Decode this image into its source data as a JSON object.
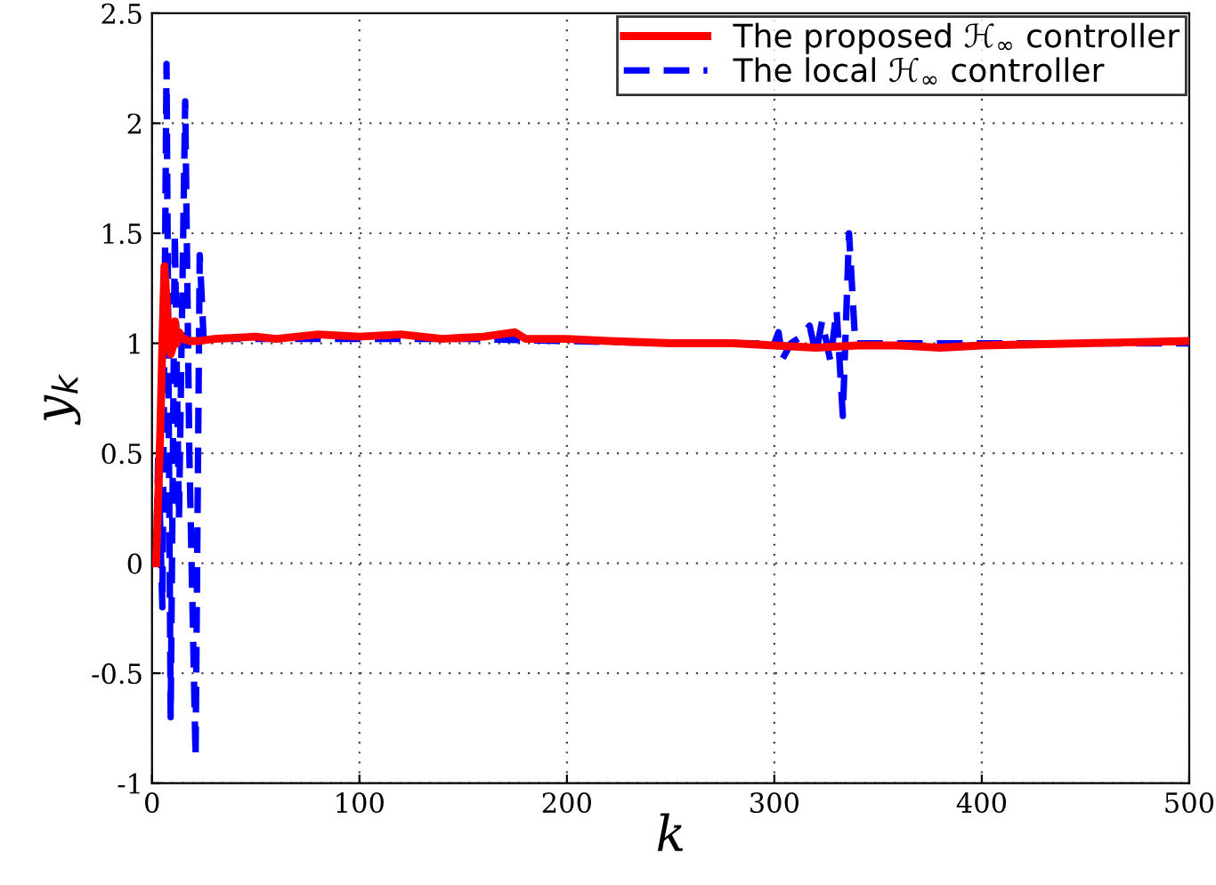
{
  "chart_data": {
    "type": "line",
    "xlabel": "k",
    "ylabel": "y$_{k}$",
    "xlim": [
      0,
      500
    ],
    "ylim": [
      -1,
      2.5
    ],
    "xticks": [
      0,
      100,
      200,
      300,
      400,
      500
    ],
    "yticks": [
      -1,
      -0.5,
      0,
      0.5,
      1,
      1.5,
      2,
      2.5
    ],
    "grid": true,
    "legend": "top right",
    "marker": "none",
    "series": [
      {
        "name": "The proposed ℋ$_{∞}$ controller",
        "color": "#ff0000",
        "line_style": "solid",
        "x": [
          2,
          3,
          4,
          5,
          6,
          7,
          8,
          9,
          10,
          11,
          12,
          13,
          15,
          18,
          22,
          30,
          50,
          60,
          80,
          100,
          120,
          140,
          160,
          175,
          180,
          200,
          220,
          250,
          280,
          300,
          320,
          340,
          360,
          380,
          400,
          450,
          500
        ],
        "values": [
          0,
          0.3,
          0.6,
          1.0,
          1.35,
          1.2,
          1.0,
          0.95,
          0.98,
          1.1,
          1.0,
          1.05,
          1.02,
          1.01,
          1.01,
          1.02,
          1.03,
          1.02,
          1.04,
          1.03,
          1.04,
          1.02,
          1.03,
          1.05,
          1.02,
          1.02,
          1.01,
          1.0,
          1.0,
          0.99,
          0.98,
          0.99,
          0.99,
          0.98,
          0.99,
          1.0,
          1.01
        ]
      },
      {
        "name": "The local ℋ$_{∞}$ controller",
        "color": "#0000ff",
        "line_style": "dashed",
        "x": [
          2,
          3,
          5,
          7,
          9,
          11,
          13,
          16,
          18,
          21,
          23,
          25,
          28,
          50,
          100,
          150,
          200,
          250,
          300,
          302,
          304,
          308,
          313,
          317,
          320,
          323,
          327,
          330,
          333,
          336,
          339,
          345,
          400,
          450,
          500
        ],
        "values": [
          0,
          0.5,
          -0.2,
          2.27,
          -0.7,
          1.5,
          0.2,
          2.1,
          0.5,
          -0.88,
          1.4,
          1.0,
          1.02,
          1.02,
          1.02,
          1.02,
          1.01,
          1.0,
          1.0,
          1.05,
          0.93,
          1.0,
          1.03,
          1.08,
          0.95,
          1.1,
          0.92,
          1.15,
          0.67,
          1.5,
          1.0,
          1.0,
          1.0,
          1.0,
          1.0
        ]
      }
    ]
  }
}
